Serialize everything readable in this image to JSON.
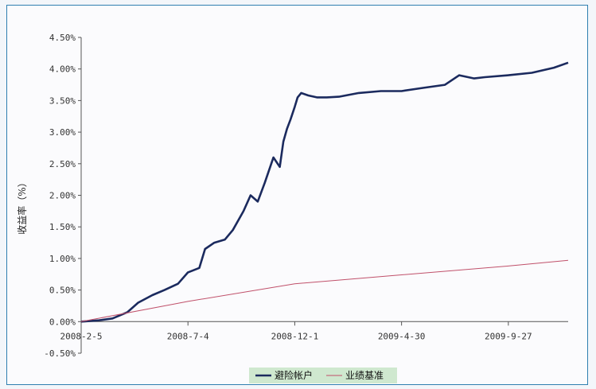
{
  "chart_data": {
    "type": "line",
    "ylabel": "收益率（%）",
    "ylim": [
      -0.5,
      4.5
    ],
    "y_ticks": [
      "-0.50%",
      "0.00%",
      "0.50%",
      "1.00%",
      "1.50%",
      "2.00%",
      "2.50%",
      "3.00%",
      "3.50%",
      "4.00%",
      "4.50%"
    ],
    "x_ticks": [
      "2008-2-5",
      "2008-7-4",
      "2008-12-1",
      "2009-4-30",
      "2009-9-27"
    ],
    "legend_position": "bottom",
    "series": [
      {
        "name": "避险帐户",
        "color": "#1b2a5e",
        "x": [
          "2008-2-5",
          "2008-3-1",
          "2008-3-20",
          "2008-4-10",
          "2008-4-25",
          "2008-5-15",
          "2008-6-1",
          "2008-6-20",
          "2008-7-4",
          "2008-7-20",
          "2008-7-28",
          "2008-8-10",
          "2008-8-25",
          "2008-9-5",
          "2008-9-20",
          "2008-9-30",
          "2008-10-10",
          "2008-10-20",
          "2008-11-1",
          "2008-11-10",
          "2008-11-15",
          "2008-11-20",
          "2008-11-25",
          "2008-12-1",
          "2008-12-5",
          "2008-12-10",
          "2008-12-20",
          "2009-1-1",
          "2009-1-15",
          "2009-2-1",
          "2009-3-1",
          "2009-4-1",
          "2009-4-30",
          "2009-5-30",
          "2009-6-30",
          "2009-7-20",
          "2009-8-10",
          "2009-8-25",
          "2009-9-27",
          "2009-10-30",
          "2009-11-30",
          "2009-12-20"
        ],
        "values": [
          0.0,
          0.02,
          0.05,
          0.15,
          0.3,
          0.42,
          0.5,
          0.6,
          0.78,
          0.85,
          1.15,
          1.25,
          1.3,
          1.45,
          1.75,
          2.0,
          1.9,
          2.2,
          2.6,
          2.45,
          2.85,
          3.05,
          3.2,
          3.4,
          3.55,
          3.62,
          3.58,
          3.55,
          3.55,
          3.56,
          3.62,
          3.65,
          3.65,
          3.7,
          3.75,
          3.9,
          3.85,
          3.87,
          3.9,
          3.94,
          4.02,
          4.1
        ]
      },
      {
        "name": "业绩基准",
        "color": "#c0506a",
        "x": [
          "2008-2-5",
          "2008-7-4",
          "2008-12-1",
          "2009-4-30",
          "2009-9-27",
          "2009-12-20"
        ],
        "values": [
          0.0,
          0.32,
          0.6,
          0.74,
          0.88,
          0.97
        ]
      }
    ]
  }
}
